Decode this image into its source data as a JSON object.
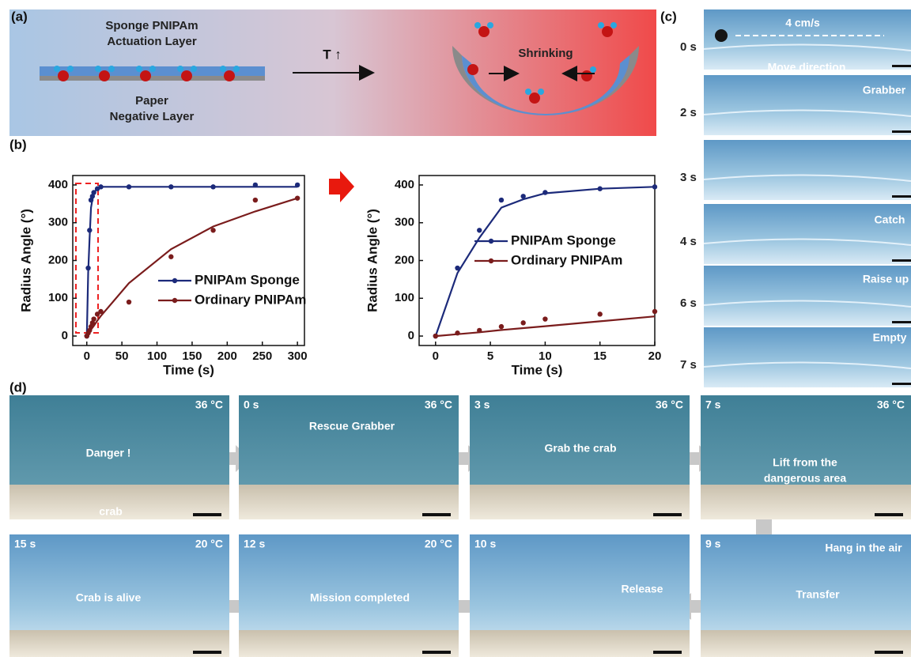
{
  "panel_a": {
    "label": "(a)",
    "top_layer": [
      "Sponge PNIPAm",
      "Actuation Layer"
    ],
    "bottom_layer": [
      "Paper",
      "Negative Layer"
    ],
    "arrow": "T ↑",
    "shrinking": "Shrinking"
  },
  "panel_b": {
    "label": "(b)"
  },
  "chart_data": [
    {
      "type": "scatter-fit",
      "x_label": "Time (s)",
      "y_label": "Radius Angle (°)",
      "x": [
        0,
        2,
        4,
        6,
        8,
        10,
        15,
        20,
        60,
        120,
        180,
        240,
        300
      ],
      "xlim": [
        -20,
        310
      ],
      "xticks": [
        0,
        50,
        100,
        150,
        200,
        250,
        300
      ],
      "ylim": [
        -25,
        425
      ],
      "yticks": [
        0,
        100,
        200,
        300,
        400
      ],
      "series": [
        {
          "name": "PNIPAm Sponge",
          "color": "#1c2a7a",
          "values": [
            0,
            180,
            280,
            360,
            370,
            380,
            390,
            395,
            395,
            395,
            395,
            400,
            400
          ],
          "fit": [
            0,
            167,
            260,
            340,
            362,
            378,
            392,
            395,
            395,
            395,
            395,
            395,
            395
          ]
        },
        {
          "name": "Ordinary PNIPAm",
          "color": "#7a1c1c",
          "values": [
            0,
            8,
            15,
            25,
            35,
            45,
            58,
            65,
            90,
            210,
            280,
            360,
            365
          ],
          "fit": [
            0,
            6,
            11,
            17,
            22,
            27,
            41,
            53,
            140,
            230,
            290,
            330,
            365
          ]
        }
      ]
    },
    {
      "type": "scatter-fit",
      "x_label": "Time (s)",
      "y_label": "Radius Angle (°)",
      "x": [
        0,
        2,
        4,
        6,
        8,
        10,
        15,
        20
      ],
      "xlim": [
        -1.5,
        20
      ],
      "xticks": [
        0,
        5,
        10,
        15,
        20
      ],
      "ylim": [
        -25,
        425
      ],
      "yticks": [
        0,
        100,
        200,
        300,
        400
      ],
      "series": [
        {
          "name": "PNIPAm Sponge",
          "color": "#1c2a7a",
          "values": [
            0,
            180,
            280,
            360,
            370,
            380,
            390,
            395
          ],
          "fit": [
            0,
            167,
            260,
            340,
            362,
            378,
            390,
            395
          ]
        },
        {
          "name": "Ordinary PNIPAm",
          "color": "#7a1c1c",
          "values": [
            0,
            8,
            15,
            25,
            35,
            45,
            58,
            65
          ],
          "fit": [
            0,
            5,
            10,
            16,
            21,
            26,
            39,
            52
          ]
        }
      ]
    }
  ],
  "panel_c": {
    "label": "(c)",
    "frames": [
      {
        "time": "0 s",
        "captions": [
          "4 cm/s",
          "Move direction"
        ]
      },
      {
        "time": "2 s",
        "captions": [
          "Grabber"
        ]
      },
      {
        "time": "3 s"
      },
      {
        "time": "4 s",
        "captions": [
          "Catch"
        ]
      },
      {
        "time": "6 s",
        "captions": [
          "Raise up"
        ]
      },
      {
        "time": "7 s",
        "captions": [
          "Empty"
        ]
      }
    ]
  },
  "panel_d": {
    "label": "(d)",
    "frames": [
      {
        "temp": "36 °C",
        "captions": [
          "Danger !",
          "crab"
        ]
      },
      {
        "time": "0 s",
        "temp": "36 °C",
        "captions": [
          "Rescue Grabber"
        ]
      },
      {
        "time": "3 s",
        "temp": "36 °C",
        "captions": [
          "Grab the crab"
        ]
      },
      {
        "time": "7 s",
        "temp": "36 °C",
        "captions": [
          "Lift from the",
          "dangerous area"
        ]
      },
      {
        "time": "9 s",
        "captions": [
          "Hang in the air",
          "Transfer"
        ]
      },
      {
        "time": "10 s",
        "captions": [
          "Release"
        ]
      },
      {
        "time": "12 s",
        "temp": "20 °C",
        "captions": [
          "Mission completed"
        ]
      },
      {
        "time": "15 s",
        "temp": "20 °C",
        "captions": [
          "Crab is alive"
        ]
      }
    ]
  }
}
